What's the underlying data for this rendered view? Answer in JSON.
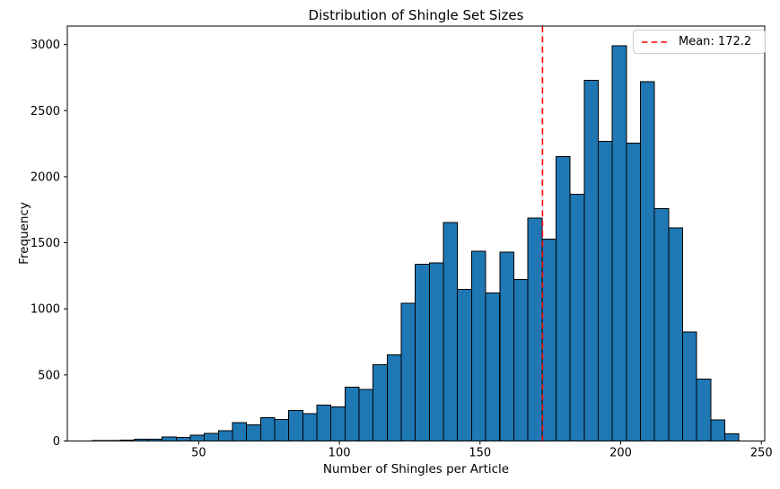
{
  "title": "Distribution of Shingle Set Sizes",
  "xlabel": "Number of Shingles per Article",
  "ylabel": "Frequency",
  "legend": {
    "label": "Mean: 172.2",
    "line_color": "#ff0000",
    "line_style": "dashed"
  },
  "chart_data": {
    "type": "bar",
    "subtype": "histogram",
    "title": "Distribution of Shingle Set Sizes",
    "xlabel": "Number of Shingles per Article",
    "ylabel": "Frequency",
    "bin_start": 12,
    "bin_width": 5,
    "frequencies": [
      4,
      2,
      7,
      14,
      14,
      29,
      27,
      45,
      59,
      77,
      139,
      121,
      178,
      162,
      230,
      207,
      270,
      259,
      406,
      391,
      576,
      651,
      1041,
      1339,
      1346,
      1652,
      1146,
      1436,
      1119,
      1429,
      1221,
      1688,
      1529,
      2152,
      1868,
      2730,
      2268,
      2991,
      2254,
      2719,
      1760,
      1613,
      826,
      470,
      158,
      55
    ],
    "mean": 172.2,
    "mean_line": {
      "value": 172.2,
      "color": "#ff0000",
      "style": "dashed",
      "label": "Mean: 172.2"
    },
    "bar_color": "#1f77b4",
    "bar_edge_color": "#000000",
    "xlim": [
      3.3,
      251.2
    ],
    "ylim": [
      0,
      3140
    ],
    "x_ticks": [
      50,
      100,
      150,
      200,
      250
    ],
    "y_ticks": [
      0,
      500,
      1000,
      1500,
      2000,
      2500,
      3000
    ],
    "grid": false,
    "legend_position": "upper right"
  }
}
